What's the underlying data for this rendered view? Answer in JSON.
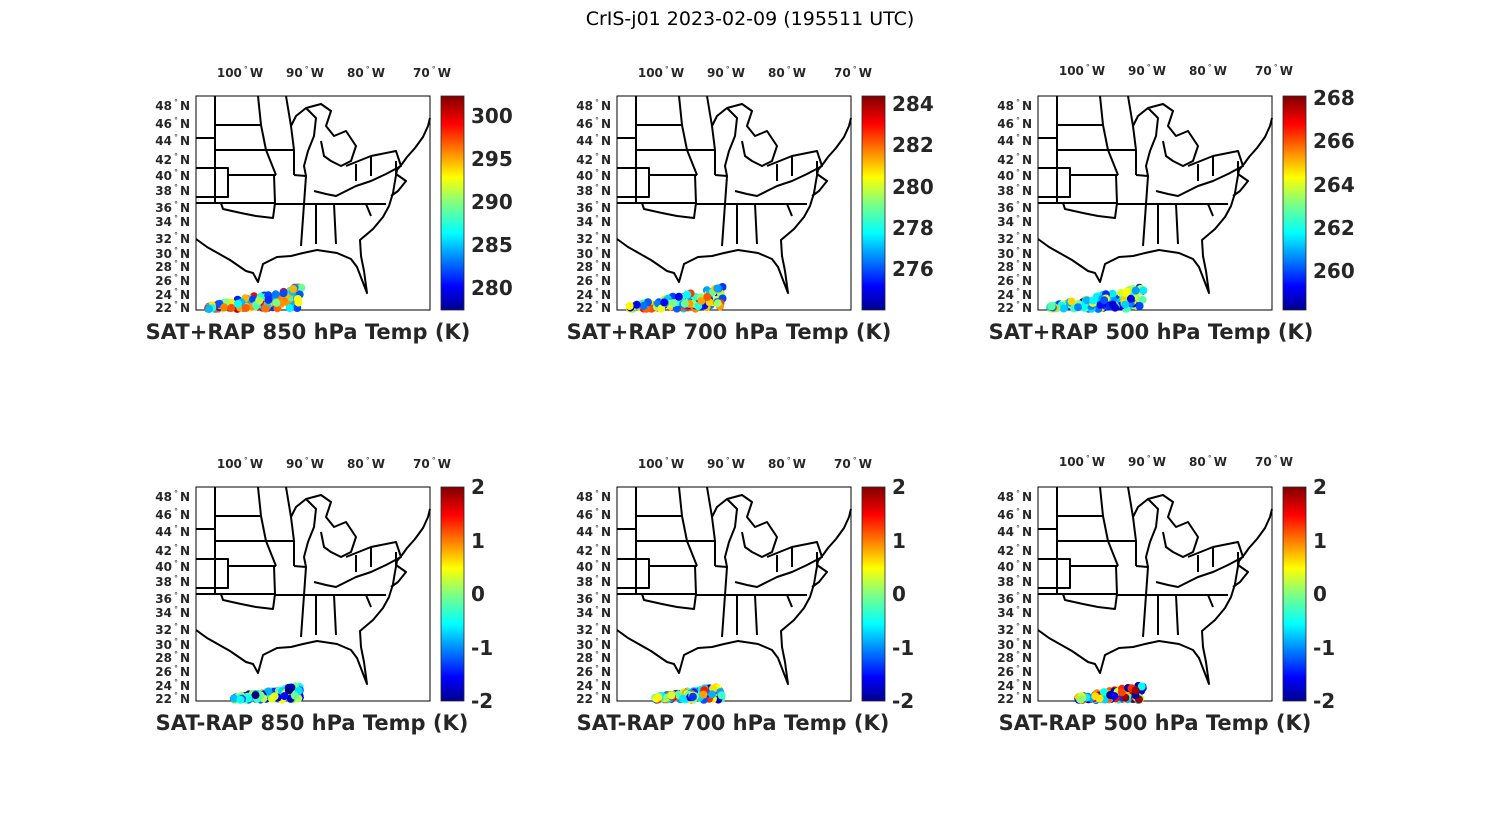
{
  "figure_title": "CrIS-j01 2023-02-09 (195511 UTC)",
  "chart_data": [
    {
      "type": "scatter",
      "title": "SAT+RAP 850 hPa Temp (K)",
      "colorbar": {
        "ticks": [
          "300",
          "295",
          "290",
          "285",
          "280"
        ],
        "tick_values": [
          300,
          295,
          290,
          285,
          280
        ],
        "range": [
          277.4,
          302.3
        ]
      },
      "xticks": [
        "100",
        "90",
        "80",
        "70"
      ],
      "yticks": [
        "48",
        "46",
        "44",
        "42",
        "40",
        "38",
        "36",
        "34",
        "32",
        "30",
        "28",
        "26",
        "24",
        "22"
      ],
      "value_range": [
        281,
        301
      ]
    },
    {
      "type": "scatter",
      "title": "SAT+RAP 700 hPa Temp (K)",
      "colorbar": {
        "ticks": [
          "284",
          "282",
          "280",
          "278",
          "276"
        ],
        "tick_values": [
          284,
          282,
          280,
          278,
          276
        ],
        "range": [
          274.0,
          284.4
        ]
      },
      "xticks": [
        "100",
        "90",
        "80",
        "70"
      ],
      "yticks": [
        "48",
        "46",
        "44",
        "42",
        "40",
        "38",
        "36",
        "34",
        "32",
        "30",
        "28",
        "26",
        "24",
        "22"
      ],
      "value_range": [
        275,
        283
      ]
    },
    {
      "type": "scatter",
      "title": "SAT+RAP 500 hPa Temp (K)",
      "colorbar": {
        "ticks": [
          "268",
          "266",
          "264",
          "262",
          "260"
        ],
        "tick_values": [
          268,
          266,
          264,
          262,
          260
        ],
        "range": [
          258.2,
          268.1
        ]
      },
      "xticks": [
        "100",
        "90",
        "80",
        "70"
      ],
      "yticks": [
        "48",
        "46",
        "44",
        "42",
        "40",
        "38",
        "36",
        "34",
        "32",
        "30",
        "28",
        "26",
        "24",
        "22"
      ],
      "value_range": [
        259,
        265
      ]
    },
    {
      "type": "scatter",
      "title": "SAT-RAP 850 hPa Temp (K)",
      "colorbar": {
        "ticks": [
          "2",
          "1",
          "0",
          "-1",
          "-2"
        ],
        "tick_values": [
          2,
          1,
          0,
          -1,
          -2
        ],
        "range": [
          -2,
          2
        ]
      },
      "xticks": [
        "100",
        "90",
        "80",
        "70"
      ],
      "yticks": [
        "48",
        "46",
        "44",
        "42",
        "40",
        "38",
        "36",
        "34",
        "32",
        "30",
        "28",
        "26",
        "24",
        "22"
      ],
      "value_range": [
        -2,
        0.5
      ]
    },
    {
      "type": "scatter",
      "title": "SAT-RAP 700 hPa Temp (K)",
      "colorbar": {
        "ticks": [
          "2",
          "1",
          "0",
          "-1",
          "-2"
        ],
        "tick_values": [
          2,
          1,
          0,
          -1,
          -2
        ],
        "range": [
          -2,
          2
        ]
      },
      "xticks": [
        "100",
        "90",
        "80",
        "70"
      ],
      "yticks": [
        "48",
        "46",
        "44",
        "42",
        "40",
        "38",
        "36",
        "34",
        "32",
        "30",
        "28",
        "26",
        "24",
        "22"
      ],
      "value_range": [
        -1.8,
        1.5
      ]
    },
    {
      "type": "scatter",
      "title": "SAT-RAP 500 hPa Temp (K)",
      "colorbar": {
        "ticks": [
          "2",
          "1",
          "0",
          "-1",
          "-2"
        ],
        "tick_values": [
          2,
          1,
          0,
          -1,
          -2
        ],
        "range": [
          -2,
          2
        ]
      },
      "xticks": [
        "100",
        "90",
        "80",
        "70"
      ],
      "yticks": [
        "48",
        "46",
        "44",
        "42",
        "40",
        "38",
        "36",
        "34",
        "32",
        "30",
        "28",
        "26",
        "24",
        "22"
      ],
      "value_range": [
        -2,
        2
      ]
    }
  ],
  "lon_suffix": "W",
  "lat_suffix": "N",
  "degree_symbol": "°"
}
